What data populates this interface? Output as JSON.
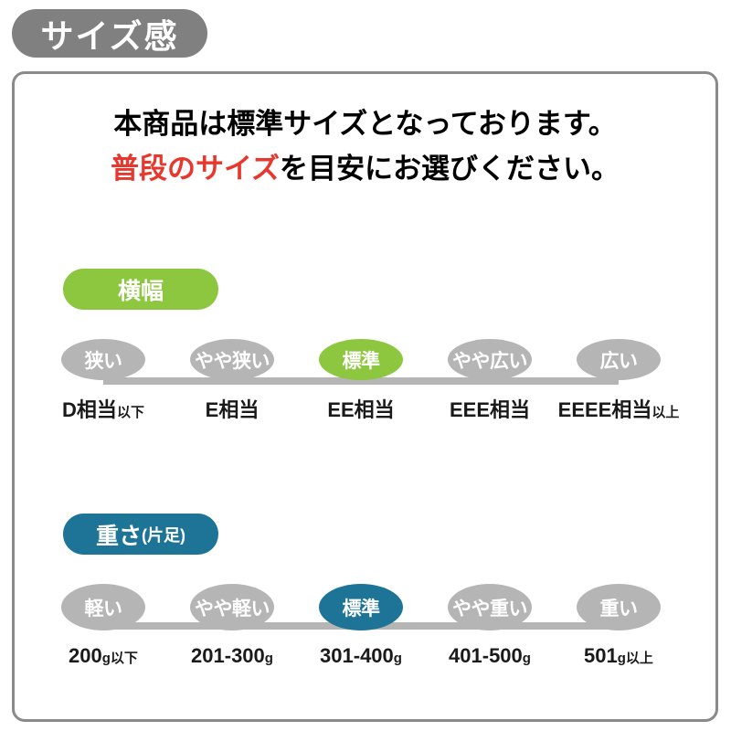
{
  "header": {
    "badge_label": "サイズ感"
  },
  "intro": {
    "line1": "本商品は標準サイズとなっております。",
    "line2_highlight": "普段のサイズ",
    "line2_rest": "を目安にお選びください。"
  },
  "colors": {
    "header_gray": "#808080",
    "panel_border": "#8a8a8a",
    "circle_gray": "#b5b5b5",
    "accent_green": "#8dc63f",
    "accent_teal": "#1d7496",
    "highlight_red": "#e8382d",
    "text_dark": "#1a1a1a"
  },
  "scales": [
    {
      "name": "width",
      "badge_label": "横幅",
      "badge_suffix": "",
      "selected_index": 2,
      "selected_value": "標準",
      "steps": [
        {
          "circle": "狭い",
          "label": "D相当",
          "label_small": "以下"
        },
        {
          "circle": "やや狭い",
          "label": "E相当",
          "label_small": ""
        },
        {
          "circle": "標準",
          "label": "EE相当",
          "label_small": ""
        },
        {
          "circle": "やや広い",
          "label": "EEE相当",
          "label_small": ""
        },
        {
          "circle": "広い",
          "label": "EEEE相当",
          "label_small": "以上"
        }
      ]
    },
    {
      "name": "weight",
      "badge_label": "重さ",
      "badge_suffix": "(片足)",
      "selected_index": 2,
      "selected_value": "標準",
      "steps": [
        {
          "circle": "軽い",
          "label": "200",
          "label_small": "g以下"
        },
        {
          "circle": "やや軽い",
          "label": "201-300",
          "label_small": "g"
        },
        {
          "circle": "標準",
          "label": "301-400",
          "label_small": "g"
        },
        {
          "circle": "やや重い",
          "label": "401-500",
          "label_small": "g"
        },
        {
          "circle": "重い",
          "label": "501",
          "label_small": "g以上"
        }
      ]
    }
  ]
}
